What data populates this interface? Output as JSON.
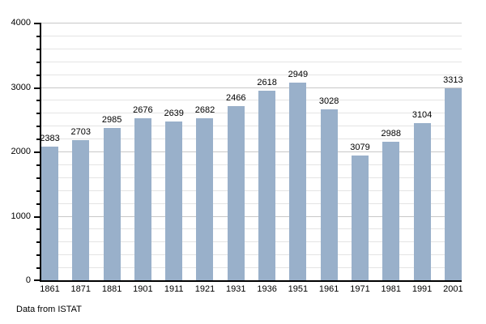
{
  "chart_data": {
    "type": "bar",
    "categories": [
      "1861",
      "1871",
      "1881",
      "1901",
      "1911",
      "1921",
      "1931",
      "1936",
      "1951",
      "1961",
      "1971",
      "1981",
      "1991",
      "2001"
    ],
    "values": [
      2383,
      2703,
      2985,
      2676,
      2639,
      2682,
      2466,
      2618,
      2949,
      3028,
      3079,
      2988,
      3104,
      3313
    ],
    "bar_heights_visual": [
      2070,
      2180,
      2365,
      2515,
      2470,
      2515,
      2700,
      2945,
      3070,
      2655,
      1940,
      2155,
      2445,
      2985
    ],
    "note_on_mismatch": "value labels printed above bars differ from visually drawn bar heights in source image",
    "title": "",
    "xlabel": "",
    "ylabel": "",
    "ylim": [
      0,
      4000
    ],
    "yticks": [
      0,
      1000,
      2000,
      3000,
      4000
    ],
    "minor_grid_step": 200,
    "grid": true,
    "legend": false,
    "bar_color": "#99b0ca",
    "minor_grid_color": "#e4e4e4",
    "major_grid_color": "#c8c8c8",
    "axis_color": "#000000",
    "annotation": "Data from ISTAT"
  }
}
